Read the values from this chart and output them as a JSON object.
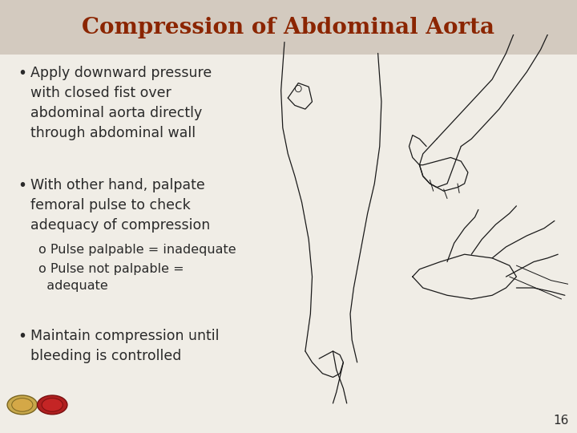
{
  "title": "Compression of Abdominal Aorta",
  "title_color": "#8B2500",
  "title_fontsize": 20,
  "title_bg_color": "#D3CABF",
  "background_color": "#F0EDE6",
  "text_color": "#2A2A2A",
  "bullet_fontsize": 12.5,
  "sub_bullet_fontsize": 11.5,
  "page_number": "16",
  "page_num_fontsize": 11,
  "bullet1": "Apply downward pressure\nwith closed fist over\nabdominal aorta directly\nthrough abdominal wall",
  "bullet2_main": "With other hand, palpate\nfemoral pulse to check\nadequacy of compression",
  "bullet2_sub1": "o Pulse palpable = inadequate",
  "bullet2_sub2": "o Pulse not palpable =\n  adequate",
  "bullet3": "Maintain compression until\nbleeding is controlled",
  "line_color": "#1A1A1A",
  "line_width": 0.9
}
